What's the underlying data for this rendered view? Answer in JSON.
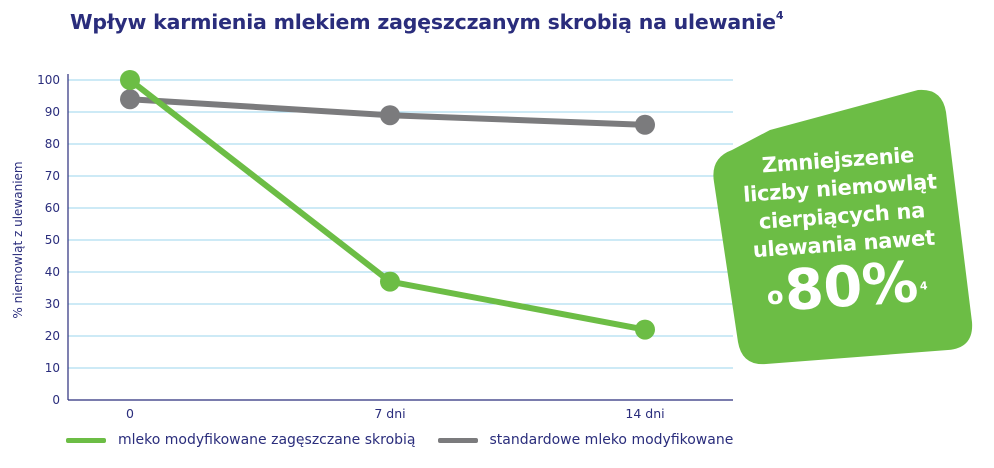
{
  "header": {
    "title": "Wpływ karmienia mlekiem zagęszczanym skrobią na ulewanie",
    "title_ref": "4"
  },
  "badge": {
    "line1": "Zmniejszenie",
    "line2": "liczby niemowląt",
    "line3": "cierpiących na",
    "line4": "ulewania nawet",
    "prefix": "o",
    "value": "80%",
    "ref": "4",
    "color": "#6cbd45"
  },
  "chart_data": {
    "type": "line",
    "categories": [
      "0",
      "7 dni",
      "14 dni"
    ],
    "series": [
      {
        "name": "mleko modyfikowane zagęszczane skrobią",
        "values": [
          100,
          37,
          22
        ],
        "color": "#6cbd45"
      },
      {
        "name": "standardowe mleko modyfikowane",
        "values": [
          94,
          89,
          86
        ],
        "color": "#7b7b7d"
      }
    ],
    "ylabel": "% niemowląt z ulewaniem",
    "ylim": [
      0,
      100
    ],
    "yticks": [
      0,
      10,
      20,
      30,
      40,
      50,
      60,
      70,
      80,
      90,
      100
    ],
    "grid": true,
    "grid_color": "#9bd4ec",
    "axis_text_color": "#2a2d7c",
    "legend_position": "bottom-left"
  }
}
